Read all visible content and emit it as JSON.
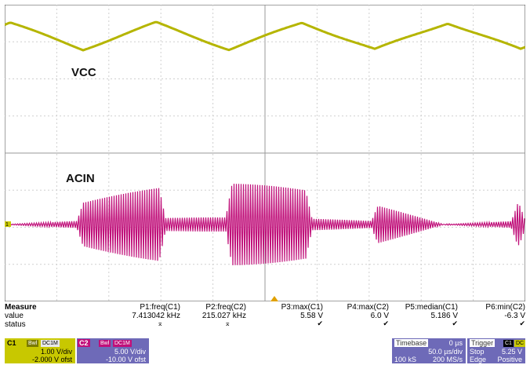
{
  "traces": {
    "top_label": "VCC",
    "bottom_label": "ACIN",
    "ground_marker": "1"
  },
  "measure": {
    "title": "Measure",
    "row_value": "value",
    "row_status": "status",
    "params": [
      {
        "name": "P1:freq(C1)",
        "value": "7.413042 kHz",
        "status": "warn-icon"
      },
      {
        "name": "P2:freq(C2)",
        "value": "215.027 kHz",
        "status": "warn-icon"
      },
      {
        "name": "P3:max(C1)",
        "value": "5.58 V",
        "status": "check-icon"
      },
      {
        "name": "P4:max(C2)",
        "value": "6.0 V",
        "status": "check-icon"
      },
      {
        "name": "P5:median(C1)",
        "value": "5.186 V",
        "status": "check-icon"
      },
      {
        "name": "P6:min(C2)",
        "value": "-6.3 V",
        "status": "check-icon"
      }
    ]
  },
  "channels": {
    "c1": {
      "name": "C1",
      "tag1": "Bwl",
      "tag2": "DC1M",
      "vdiv": "1.00 V/div",
      "offset": "-2.000 V ofst",
      "color": "#c8c800"
    },
    "c2": {
      "name": "C2",
      "tag1": "Bwl",
      "tag2": "DC1M",
      "vdiv": "5.00 V/div",
      "offset": "-10.00 V ofst",
      "color": "#c0107a"
    }
  },
  "timebase": {
    "title": "Timebase",
    "delay": "0 µs",
    "tdiv": "50.0 µs/div",
    "samples": "100 kS",
    "rate": "200 MS/s"
  },
  "trigger": {
    "title": "Trigger",
    "source": "C1",
    "coupling": "DC",
    "mode": "Stop",
    "level": "5.25 V",
    "type": "Edge",
    "slope": "Positive"
  },
  "colors": {
    "grid": "#c8c8c8",
    "vcc_trace": "#b5b500",
    "acin_trace": "#c0107a",
    "panel": "#6e6ab8"
  }
}
